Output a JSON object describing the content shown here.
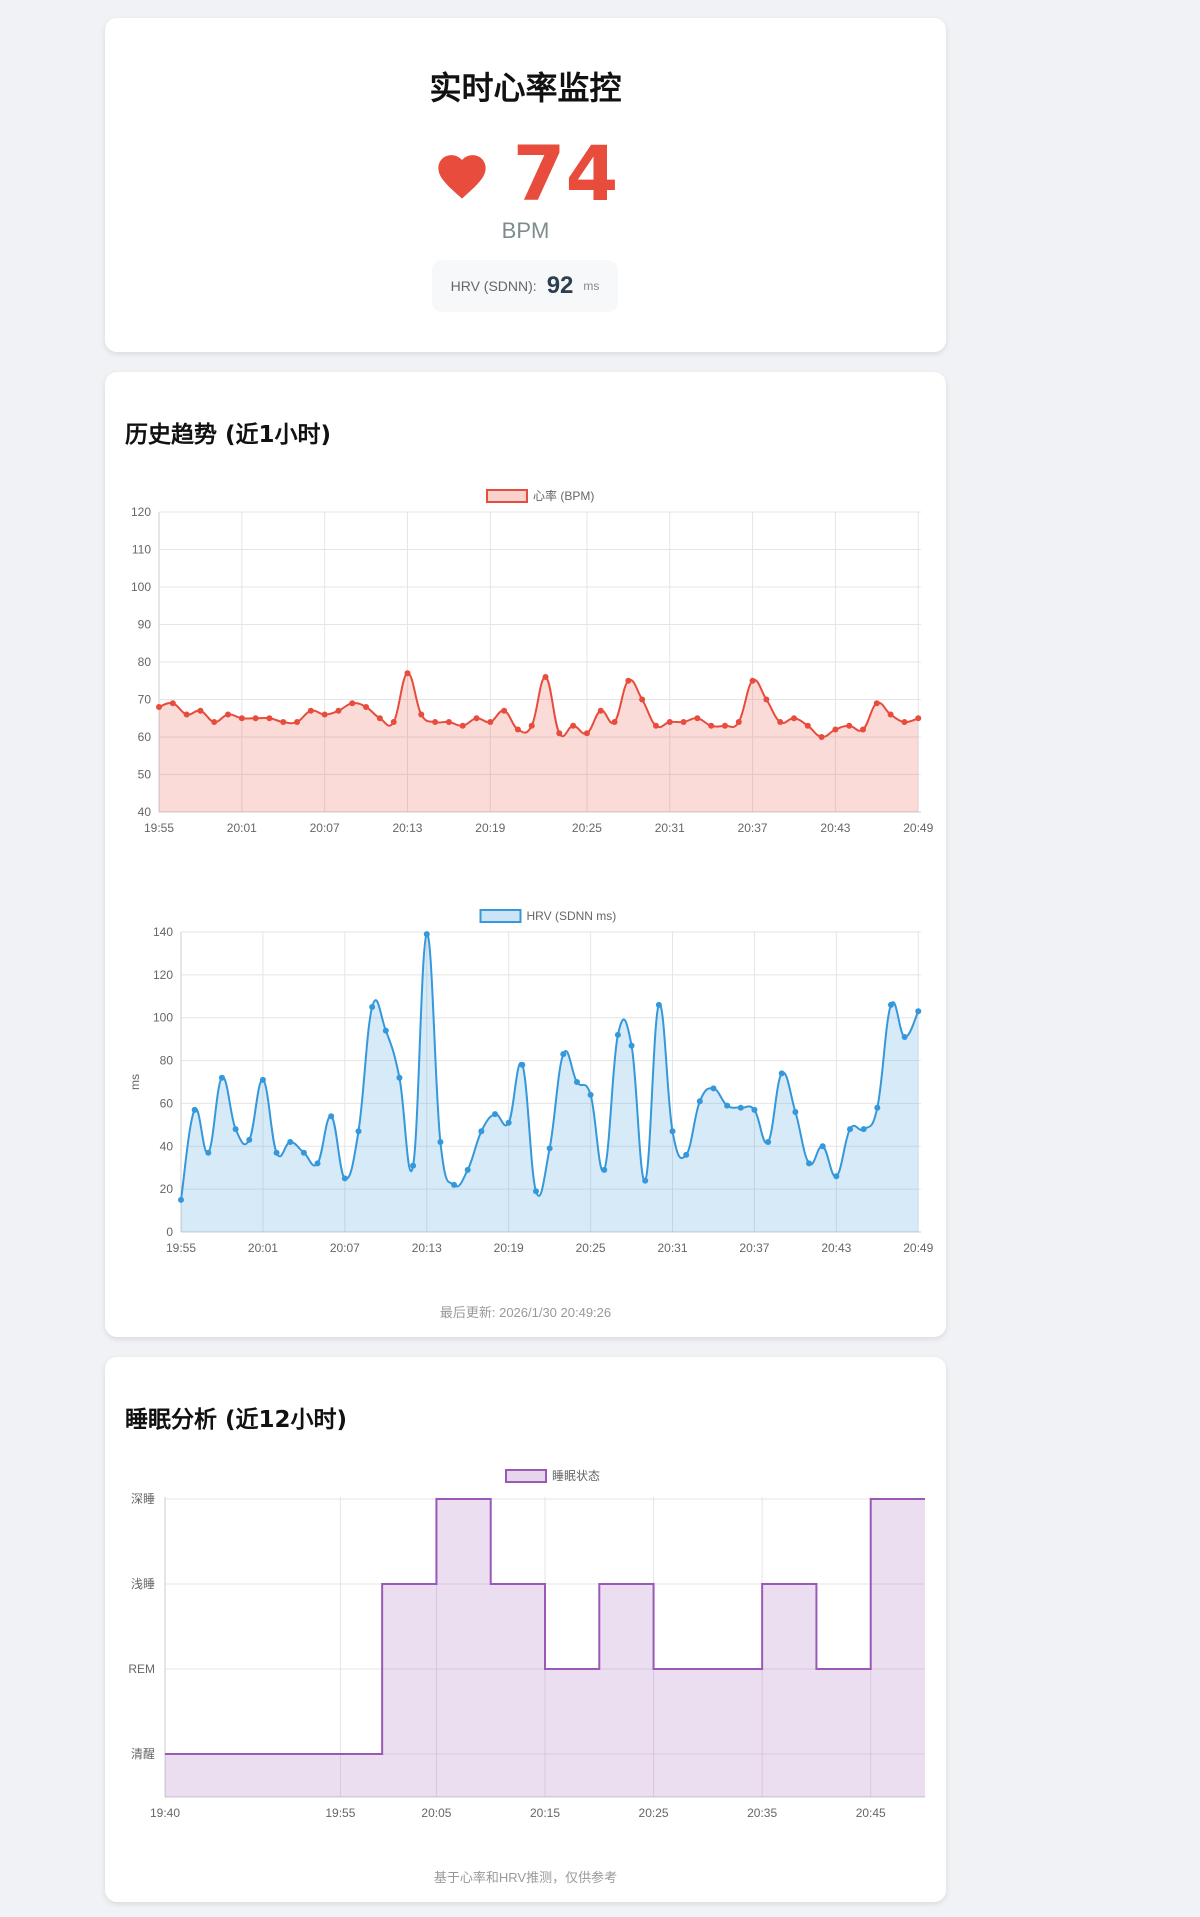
{
  "live": {
    "title": "实时心率监控",
    "heart_rate": "74",
    "unit": "BPM",
    "hrv_label": "HRV (SDNN):",
    "hrv_value": "92",
    "hrv_unit": "ms",
    "accent": "#e74c3c"
  },
  "history": {
    "title": "历史趋势 (近1小时)",
    "updated": "最后更新: 2026/1/30 20:49:26"
  },
  "sleep": {
    "title": "睡眠分析 (近12小时)",
    "note": "基于心率和HRV推测，仅供参考"
  },
  "chart_data": [
    {
      "type": "area",
      "legend": "心率 (BPM)",
      "ylim": [
        40,
        120
      ],
      "yticks": [
        40,
        50,
        60,
        70,
        80,
        90,
        100,
        110,
        120
      ],
      "xticks": [
        "19:55",
        "20:01",
        "20:07",
        "20:13",
        "20:19",
        "20:25",
        "20:31",
        "20:37",
        "20:43",
        "20:49"
      ],
      "color": "#e74c3c",
      "values": [
        68,
        69,
        66,
        67,
        64,
        66,
        65,
        65,
        65,
        64,
        64,
        67,
        66,
        67,
        69,
        68,
        65,
        64,
        77,
        66,
        64,
        64,
        63,
        65,
        64,
        67,
        62,
        63,
        76,
        61,
        63,
        61,
        67,
        64,
        75,
        70,
        63,
        64,
        64,
        65,
        63,
        63,
        64,
        75,
        70,
        64,
        65,
        63,
        60,
        62,
        63,
        62,
        69,
        66,
        64,
        65
      ]
    },
    {
      "type": "area",
      "legend": "HRV (SDNN ms)",
      "ylabel": "ms",
      "ylim": [
        0,
        140
      ],
      "yticks": [
        0,
        20,
        40,
        60,
        80,
        100,
        120,
        140
      ],
      "xticks": [
        "19:55",
        "20:01",
        "20:07",
        "20:13",
        "20:19",
        "20:25",
        "20:31",
        "20:37",
        "20:43",
        "20:49"
      ],
      "color": "#3498db",
      "values": [
        15,
        57,
        37,
        72,
        48,
        43,
        71,
        37,
        42,
        37,
        32,
        54,
        25,
        47,
        105,
        94,
        72,
        31,
        139,
        42,
        22,
        29,
        47,
        55,
        51,
        78,
        19,
        39,
        83,
        70,
        64,
        29,
        92,
        87,
        24,
        106,
        47,
        36,
        61,
        67,
        59,
        58,
        57,
        42,
        74,
        56,
        32,
        40,
        26,
        48,
        48,
        58,
        106,
        91,
        103
      ]
    },
    {
      "type": "line",
      "legend": "睡眠状态",
      "categories": [
        "清醒",
        "REM",
        "浅睡",
        "深睡"
      ],
      "xticks": [
        "19:40",
        "19:55",
        "20:05",
        "20:15",
        "20:25",
        "20:35",
        "20:45"
      ],
      "color": "#9b59b6",
      "steps": [
        {
          "from": "19:40",
          "to": "20:00",
          "state": "清醒"
        },
        {
          "from": "20:00",
          "to": "20:05",
          "state": "浅睡"
        },
        {
          "from": "20:05",
          "to": "20:10",
          "state": "深睡"
        },
        {
          "from": "20:10",
          "to": "20:15",
          "state": "浅睡"
        },
        {
          "from": "20:15",
          "to": "20:20",
          "state": "REM"
        },
        {
          "from": "20:20",
          "to": "20:25",
          "state": "浅睡"
        },
        {
          "from": "20:25",
          "to": "20:35",
          "state": "REM"
        },
        {
          "from": "20:35",
          "to": "20:40",
          "state": "浅睡"
        },
        {
          "from": "20:40",
          "to": "20:45",
          "state": "REM"
        },
        {
          "from": "20:45",
          "to": "20:50",
          "state": "深睡"
        }
      ]
    }
  ]
}
